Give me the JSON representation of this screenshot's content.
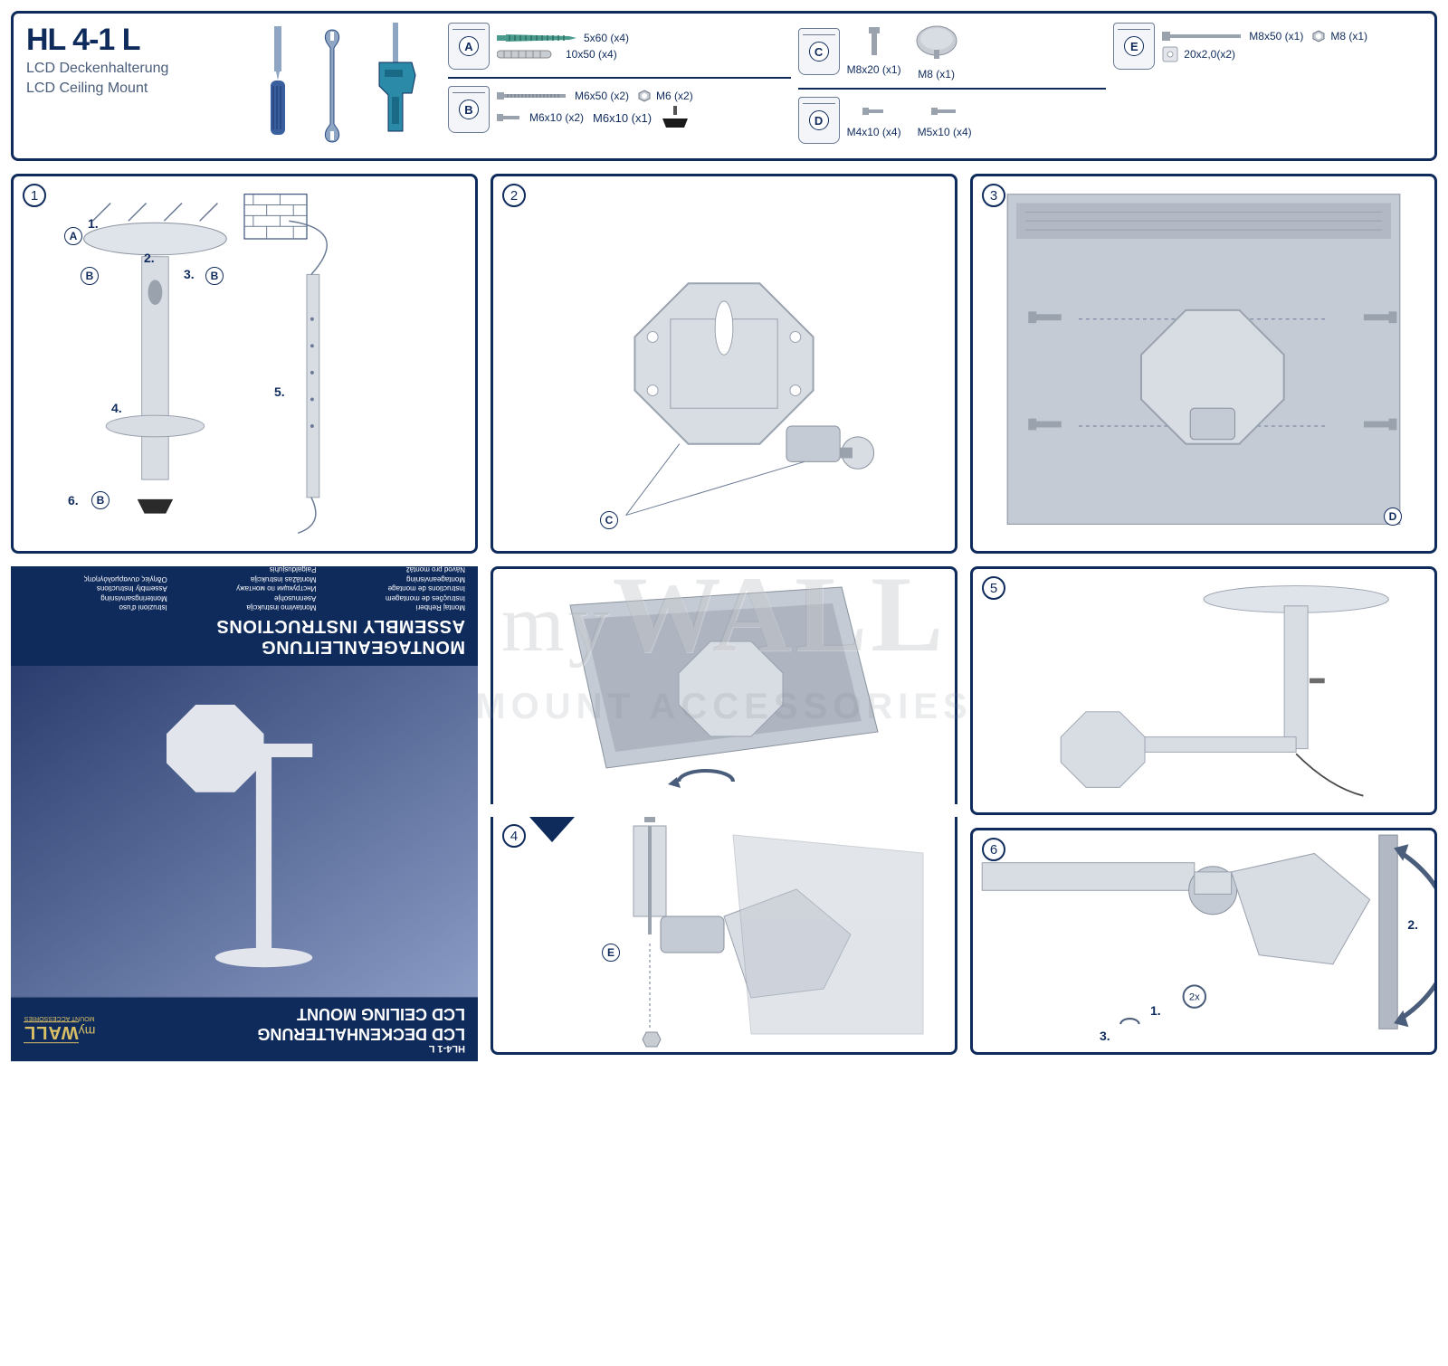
{
  "header": {
    "model": "HL 4-1 L",
    "subtitle_de": "LCD Deckenhalterung",
    "subtitle_en": "LCD Ceiling Mount"
  },
  "tools": [
    "screwdriver",
    "wrench",
    "drill"
  ],
  "parts": {
    "A": [
      {
        "spec": "5x60 (x4)",
        "icon": "wood-screw",
        "color": "#4a9b8e"
      },
      {
        "spec": "10x50 (x4)",
        "icon": "wall-anchor",
        "color": "#9aa2ae"
      }
    ],
    "B": [
      {
        "spec": "M6x50 (x2)",
        "icon": "bolt-long",
        "color": "#9aa2ae"
      },
      {
        "spec": "M6 (x2)",
        "icon": "hex-nut",
        "color": "#9aa2ae"
      },
      {
        "spec": "M6x10 (x2)",
        "icon": "bolt-short",
        "color": "#9aa2ae"
      },
      {
        "spec": "M6x10 (x1)",
        "icon": "thumb-knob",
        "color": "#1a1a1a"
      }
    ],
    "C": [
      {
        "spec": "M8x20 (x1)",
        "icon": "bolt-short",
        "color": "#9aa2ae"
      },
      {
        "spec": "M8 (x1)",
        "icon": "hand-knob",
        "color": "#9aa2ae"
      }
    ],
    "D": [
      {
        "spec": "M4x10 (x4)",
        "icon": "bolt-short",
        "color": "#9aa2ae"
      },
      {
        "spec": "M5x10 (x4)",
        "icon": "bolt-short",
        "color": "#9aa2ae"
      }
    ],
    "E": [
      {
        "spec": "M8x50 (x1)",
        "icon": "bolt-long",
        "color": "#9aa2ae"
      },
      {
        "spec": "M8 (x1)",
        "icon": "hex-nut",
        "color": "#9aa2ae"
      },
      {
        "spec": "20x2,0(x2)",
        "icon": "square-washer",
        "color": "#c8ccd3"
      }
    ]
  },
  "steps": {
    "1": {
      "callouts": [
        "A",
        "B",
        "B",
        "B"
      ],
      "sub": [
        "1.",
        "2.",
        "3.",
        "4.",
        "5.",
        "6."
      ]
    },
    "2": {
      "callouts": [
        "C"
      ]
    },
    "3": {
      "callouts": [
        "D"
      ]
    },
    "4": {
      "callouts": [
        "E"
      ]
    },
    "5": {
      "callouts": []
    },
    "6": {
      "sub": [
        "1.",
        "2.",
        "3."
      ],
      "note_2x": "2x"
    }
  },
  "cover": {
    "title_de": "MONTAGEANLEITUNG",
    "title_en": "ASSEMBLY INSTRUCTIONS",
    "langs": [
      "Montaj Rehberi",
      "Instruções de montagem",
      "Instructions de montage",
      "Montageanvisning",
      "Návod pro montáž",
      "Instrucciones de montaje",
      "Montavimo instrukcija",
      "Asennusohje",
      "Инструкции по монтажу",
      "Montāžas instrukcija",
      "Paigaldusjuhis",
      "Montagehandleiding",
      "Istruzioni d'uso",
      "Monteringsanvisning",
      "Assembly Instructions",
      "Οδηγίες συναρμολόγησης"
    ],
    "bottom_model": "HL4-1 L",
    "bottom_de": "LCD DECKENHALTERUNG",
    "bottom_en": "LCD CEILING MOUNT",
    "brand_pre": "my",
    "brand": "WALL",
    "brand_sub": "MOUNT ACCESSORIES"
  },
  "watermark": {
    "pre": "my",
    "main": "WALL",
    "sub": "MOUNT ACCESSORIES"
  },
  "colors": {
    "frame": "#0f2b5c",
    "metal": "#c5cbd4",
    "metal_dark": "#9aa2ae",
    "screen": "#b8bec8",
    "accent": "#4a5d7a"
  }
}
